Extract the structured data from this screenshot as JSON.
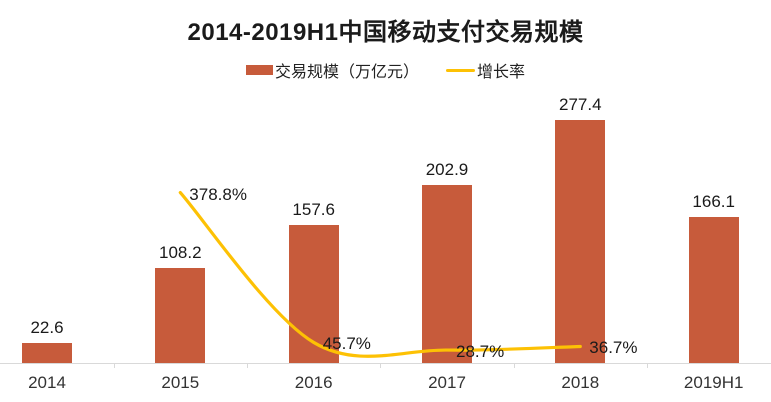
{
  "title": "2014-2019H1中国移动支付交易规模",
  "legend": {
    "bar_label": "交易规模（万亿元）",
    "line_label": "增长率"
  },
  "colors": {
    "bar": "#c75b3b",
    "line": "#fdc104",
    "axis": "#d9d9d9",
    "title_text": "#1b1b1b",
    "label_text": "#1a1a1a",
    "axis_text": "#333333"
  },
  "chart_data": {
    "type": "bar",
    "subtype": "bar+line combo",
    "title": "2014-2019H1中国移动支付交易规模",
    "categories": [
      "2014",
      "2015",
      "2016",
      "2017",
      "2018",
      "2019H1"
    ],
    "series": [
      {
        "name": "交易规模（万亿元）",
        "type": "bar",
        "values": [
          22.6,
          108.2,
          157.6,
          202.9,
          277.4,
          166.1
        ],
        "labels": [
          "22.6",
          "108.2",
          "157.6",
          "202.9",
          "277.4",
          "166.1"
        ]
      },
      {
        "name": "增长率",
        "type": "line",
        "values": [
          null,
          378.8,
          45.7,
          28.7,
          36.7,
          null
        ],
        "labels": [
          null,
          "378.8%",
          "45.7%",
          "28.7%",
          "36.7%",
          null
        ]
      }
    ],
    "xlabel": "",
    "ylabel": "",
    "ylim": [
      0,
      310
    ],
    "y2lim": [
      0,
      400
    ],
    "grid": false,
    "axes_hidden": true,
    "legend_position": "top"
  }
}
